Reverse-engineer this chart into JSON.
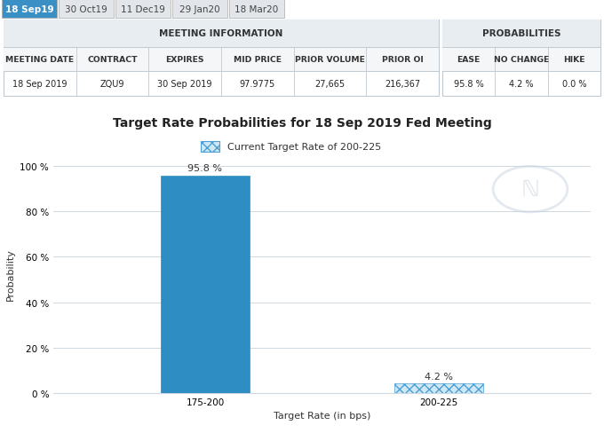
{
  "title": "Target Rate Probabilities for 18 Sep 2019 Fed Meeting",
  "legend_label": "Current Target Rate of 200-225",
  "xlabel": "Target Rate (in bps)",
  "ylabel": "Probability",
  "categories": [
    "175-200",
    "200-225"
  ],
  "values": [
    95.8,
    4.2
  ],
  "bar_color_solid": "#2e8ec4",
  "hatch_pattern": "xxx",
  "hatch_color": "#4a9fd4",
  "hatch_facecolor": "#d0e8f5",
  "ylim": [
    0,
    105
  ],
  "yticks": [
    0,
    20,
    40,
    60,
    80,
    100
  ],
  "ytick_labels": [
    "0 %",
    "20 %",
    "40 %",
    "60 %",
    "80 %",
    "100 %"
  ],
  "value_labels": [
    "95.8 %",
    "4.2 %"
  ],
  "bg_color": "#ffffff",
  "plot_bg_color": "#ffffff",
  "grid_color": "#d0d8e0",
  "tab_labels": [
    "18 Sep19",
    "30 Oct19",
    "11 Dec19",
    "29 Jan20",
    "18 Mar20"
  ],
  "active_tab": 0,
  "tab_active_bg": "#3a8fc4",
  "tab_inactive_bg": "#e2e6ea",
  "tab_active_text": "#ffffff",
  "tab_inactive_text": "#444444",
  "header_bg": "#e8edf2",
  "header_text_color": "#333333",
  "table_border_color": "#c0c8d0",
  "meeting_info_headers": [
    "MEETING DATE",
    "CONTRACT",
    "EXPIRES",
    "MID PRICE",
    "PRIOR VOLUME",
    "PRIOR OI"
  ],
  "meeting_info_values": [
    "18 Sep 2019",
    "ZQU9",
    "30 Sep 2019",
    "97.9775",
    "27,665",
    "216,367"
  ],
  "prob_headers": [
    "EASE",
    "NO CHANGE",
    "HIKE"
  ],
  "prob_values": [
    "95.8 %",
    "4.2 %",
    "0.0 %"
  ],
  "title_fontsize": 10,
  "axis_label_fontsize": 8,
  "tick_fontsize": 7.5,
  "table_fontsize": 7,
  "tab_fontsize": 7.5
}
